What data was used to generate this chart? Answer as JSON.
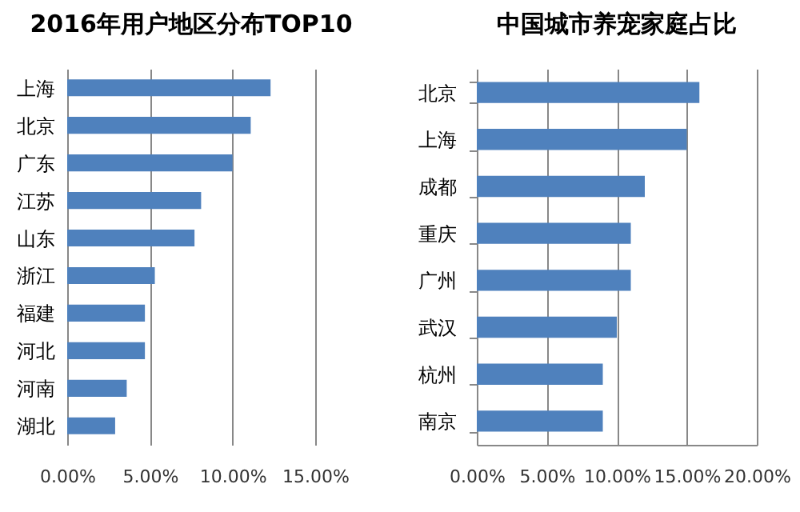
{
  "chart_data": [
    {
      "type": "bar",
      "orientation": "horizontal",
      "title": "2016年用户地区分布TOP10",
      "categories": [
        "上海",
        "北京",
        "广东",
        "江苏",
        "山东",
        "浙江",
        "福建",
        "河北",
        "河南",
        "湖北"
      ],
      "series": [
        {
          "color": "#4f81bd",
          "values": [
            12.3,
            11.1,
            10.0,
            8.1,
            7.7,
            5.3,
            4.7,
            4.7,
            3.6,
            2.9
          ]
        }
      ],
      "xlim": [
        0,
        15
      ],
      "xticks": [
        {
          "value": 0,
          "label": "0.00%"
        },
        {
          "value": 5,
          "label": "5.00%"
        },
        {
          "value": 10,
          "label": "10.00%"
        },
        {
          "value": 15,
          "label": "15.00%"
        }
      ],
      "grid": "x"
    },
    {
      "type": "bar",
      "orientation": "horizontal",
      "title": "中国城市养宠家庭占比",
      "categories": [
        "北京",
        "上海",
        "成都",
        "重庆",
        "广州",
        "武汉",
        "杭州",
        "南京"
      ],
      "series": [
        {
          "color": "#4f81bd",
          "values": [
            15.9,
            15.0,
            12.0,
            11.0,
            11.0,
            10.0,
            9.0,
            9.0
          ]
        }
      ],
      "xlim": [
        0,
        20
      ],
      "xticks": [
        {
          "value": 0,
          "label": "0.00%"
        },
        {
          "value": 5,
          "label": "5.00%"
        },
        {
          "value": 10,
          "label": "10.00%"
        },
        {
          "value": 15,
          "label": "15.00%"
        },
        {
          "value": 20,
          "label": "20.00%"
        }
      ],
      "grid": "x"
    }
  ]
}
